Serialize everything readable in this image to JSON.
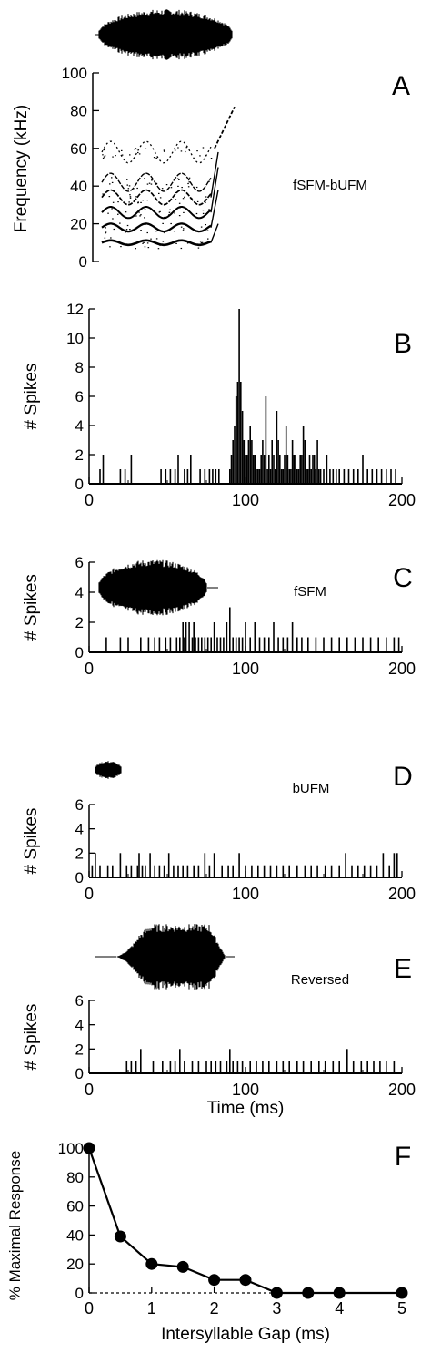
{
  "chart_data": [
    {
      "panel": "A",
      "type": "spectrogram",
      "title": "fSFM-bUFM",
      "ylabel": "Frequency (kHz)",
      "ylim": [
        0,
        100
      ],
      "yticks": [
        0,
        20,
        40,
        60,
        80,
        100
      ],
      "bands_khz": [
        10,
        18,
        26,
        34,
        42,
        58
      ],
      "sweep_end_khz": [
        60,
        82
      ]
    },
    {
      "panel": "B",
      "type": "bar",
      "ylabel": "# Spikes",
      "xlim": [
        0,
        200
      ],
      "ylim": [
        0,
        12
      ],
      "xticks": [
        0,
        100,
        200
      ],
      "yticks": [
        0,
        2,
        4,
        6,
        8,
        10,
        12
      ],
      "x": [
        7,
        9,
        20,
        23,
        27,
        46,
        49,
        52,
        55,
        57,
        61,
        63,
        65,
        71,
        74,
        77,
        79,
        81,
        83,
        90,
        91,
        92,
        93,
        94,
        95,
        96,
        97,
        98,
        99,
        100,
        101,
        102,
        103,
        104,
        105,
        106,
        107,
        108,
        109,
        110,
        111,
        112,
        113,
        114,
        115,
        116,
        117,
        118,
        119,
        120,
        121,
        122,
        123,
        124,
        125,
        126,
        127,
        128,
        129,
        130,
        131,
        132,
        133,
        134,
        135,
        136,
        137,
        138,
        139,
        140,
        141,
        142,
        143,
        144,
        145,
        146,
        147,
        148,
        150,
        152,
        154,
        156,
        158,
        160,
        163,
        166,
        169,
        172,
        175,
        178,
        181,
        184,
        187,
        190,
        193,
        196
      ],
      "values": [
        1,
        2,
        1,
        1,
        2,
        1,
        1,
        1,
        1,
        2,
        1,
        1,
        2,
        1,
        1,
        1,
        1,
        1,
        1,
        1,
        2,
        3,
        4,
        6,
        7,
        12,
        7,
        5,
        3,
        2,
        2,
        3,
        4,
        3,
        2,
        2,
        1,
        1,
        1,
        2,
        3,
        2,
        6,
        1,
        2,
        1,
        3,
        2,
        1,
        5,
        3,
        2,
        1,
        1,
        2,
        4,
        2,
        1,
        1,
        3,
        2,
        2,
        1,
        1,
        2,
        2,
        4,
        3,
        1,
        1,
        2,
        1,
        2,
        2,
        1,
        3,
        1,
        1,
        1,
        2,
        1,
        1,
        1,
        1,
        1,
        1,
        1,
        1,
        2,
        1,
        1,
        1,
        1,
        1,
        1,
        1
      ]
    },
    {
      "panel": "C",
      "type": "bar",
      "title": "fSFM",
      "ylabel": "# Spikes",
      "xlim": [
        0,
        200
      ],
      "ylim": [
        0,
        6
      ],
      "xticks": [
        0,
        100,
        200
      ],
      "yticks": [
        0,
        2,
        4,
        6
      ],
      "x": [
        11,
        20,
        25,
        33,
        38,
        42,
        45,
        49,
        52,
        56,
        58,
        60,
        61,
        62,
        64,
        66,
        67,
        68,
        70,
        72,
        74,
        76,
        78,
        80,
        82,
        84,
        86,
        88,
        90,
        92,
        94,
        96,
        98,
        100,
        103,
        106,
        109,
        112,
        115,
        118,
        121,
        124,
        127,
        130,
        133,
        136,
        140,
        145,
        150,
        155,
        160,
        165,
        170,
        175,
        180,
        185,
        190,
        195,
        198
      ],
      "values": [
        1,
        1,
        1,
        1,
        1,
        1,
        1,
        1,
        1,
        1,
        1,
        2,
        1,
        2,
        2,
        1,
        2,
        1,
        1,
        1,
        1,
        1,
        1,
        2,
        1,
        1,
        1,
        2,
        3,
        1,
        1,
        1,
        1,
        2,
        1,
        2,
        1,
        1,
        1,
        2,
        1,
        1,
        1,
        2,
        1,
        1,
        1,
        1,
        1,
        1,
        1,
        1,
        1,
        1,
        1,
        1,
        1,
        1,
        1
      ]
    },
    {
      "panel": "D",
      "type": "bar",
      "title": "bUFM",
      "ylabel": "# Spikes",
      "xlim": [
        0,
        200
      ],
      "ylim": [
        0,
        6
      ],
      "xticks": [
        0,
        100,
        200
      ],
      "yticks": [
        0,
        2,
        4,
        6
      ],
      "x": [
        2,
        4,
        7,
        12,
        15,
        20,
        24,
        27,
        31,
        32,
        34,
        36,
        39,
        42,
        45,
        48,
        51,
        54,
        57,
        60,
        63,
        67,
        70,
        74,
        77,
        80,
        85,
        89,
        92,
        96,
        100,
        104,
        108,
        112,
        116,
        120,
        124,
        128,
        133,
        138,
        142,
        146,
        151,
        155,
        160,
        164,
        168,
        172,
        176,
        180,
        184,
        188,
        192,
        195,
        197
      ],
      "values": [
        1,
        2,
        1,
        1,
        1,
        2,
        1,
        1,
        1,
        2,
        1,
        1,
        2,
        1,
        1,
        1,
        2,
        1,
        1,
        1,
        1,
        1,
        1,
        2,
        1,
        2,
        1,
        1,
        1,
        2,
        1,
        1,
        1,
        1,
        1,
        1,
        1,
        1,
        1,
        1,
        1,
        1,
        1,
        1,
        1,
        2,
        1,
        1,
        1,
        1,
        1,
        2,
        1,
        2,
        2
      ]
    },
    {
      "panel": "E",
      "type": "bar",
      "title": "Reversed",
      "ylabel": "# Spikes",
      "xlabel": "Time (ms)",
      "xlim": [
        0,
        200
      ],
      "ylim": [
        0,
        6
      ],
      "xticks": [
        0,
        100,
        200
      ],
      "yticks": [
        0,
        2,
        4,
        6
      ],
      "x": [
        24,
        27,
        30,
        33,
        41,
        47,
        52,
        55,
        58,
        61,
        66,
        70,
        75,
        78,
        81,
        84,
        88,
        90,
        92,
        95,
        98,
        103,
        107,
        111,
        115,
        120,
        124,
        128,
        133,
        137,
        142,
        147,
        151,
        156,
        160,
        165,
        169,
        174,
        178,
        182,
        186,
        190,
        195
      ],
      "values": [
        1,
        1,
        1,
        2,
        1,
        1,
        1,
        1,
        2,
        1,
        1,
        1,
        1,
        1,
        1,
        1,
        1,
        2,
        1,
        1,
        1,
        1,
        1,
        1,
        1,
        1,
        1,
        1,
        1,
        1,
        1,
        1,
        1,
        1,
        1,
        2,
        1,
        1,
        1,
        1,
        1,
        1,
        1
      ]
    },
    {
      "panel": "F",
      "type": "line",
      "ylabel": "% Maximal Response",
      "xlabel": "Intersyllable Gap (ms)",
      "xlim": [
        0,
        5
      ],
      "ylim": [
        0,
        100
      ],
      "xticks": [
        0,
        1,
        2,
        3,
        4,
        5
      ],
      "yticks": [
        0,
        20,
        40,
        60,
        80,
        100
      ],
      "x": [
        0,
        0.5,
        1,
        1.5,
        2,
        2.5,
        3,
        3.5,
        4,
        5
      ],
      "values": [
        100,
        39,
        20,
        18,
        9,
        9,
        0,
        0,
        0,
        0
      ]
    }
  ],
  "panel_letters": [
    "A",
    "B",
    "C",
    "D",
    "E",
    "F"
  ]
}
